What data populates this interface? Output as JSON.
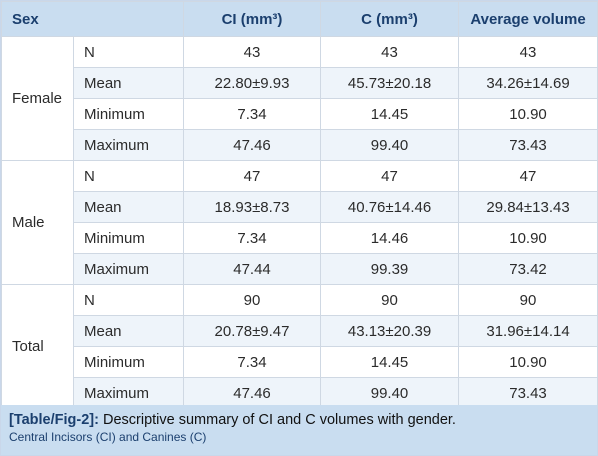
{
  "table": {
    "headers": {
      "sex": "Sex",
      "ci": "CI (mm³)",
      "c": "C (mm³)",
      "avg": "Average volume"
    },
    "groups": [
      {
        "label": "Female",
        "rows": [
          {
            "stat": "N",
            "ci": "43",
            "c": "43",
            "avg": "43"
          },
          {
            "stat": "Mean",
            "ci": "22.80±9.93",
            "c": "45.73±20.18",
            "avg": "34.26±14.69"
          },
          {
            "stat": "Minimum",
            "ci": "7.34",
            "c": "14.45",
            "avg": "10.90"
          },
          {
            "stat": "Maximum",
            "ci": "47.46",
            "c": "99.40",
            "avg": "73.43"
          }
        ]
      },
      {
        "label": "Male",
        "rows": [
          {
            "stat": "N",
            "ci": "47",
            "c": "47",
            "avg": "47"
          },
          {
            "stat": "Mean",
            "ci": "18.93±8.73",
            "c": "40.76±14.46",
            "avg": "29.84±13.43"
          },
          {
            "stat": "Minimum",
            "ci": "7.34",
            "c": "14.46",
            "avg": "10.90"
          },
          {
            "stat": "Maximum",
            "ci": "47.44",
            "c": "99.39",
            "avg": "73.42"
          }
        ]
      },
      {
        "label": "Total",
        "rows": [
          {
            "stat": "N",
            "ci": "90",
            "c": "90",
            "avg": "90"
          },
          {
            "stat": "Mean",
            "ci": "20.78±9.47",
            "c": "43.13±20.39",
            "avg": "31.96±14.14"
          },
          {
            "stat": "Minimum",
            "ci": "7.34",
            "c": "14.45",
            "avg": "10.90"
          },
          {
            "stat": "Maximum",
            "ci": "47.46",
            "c": "99.40",
            "avg": "73.43"
          }
        ]
      }
    ]
  },
  "caption": {
    "label": "[Table/Fig-2]:",
    "text": "Descriptive summary of CI and C volumes with gender.",
    "note": "Central Incisors (CI) and Canines (C)"
  },
  "colors": {
    "header_bg": "#c9ddf0",
    "header_text": "#1b3f6e",
    "alt_row_bg": "#eef4fa",
    "border": "#cfd8e3"
  }
}
